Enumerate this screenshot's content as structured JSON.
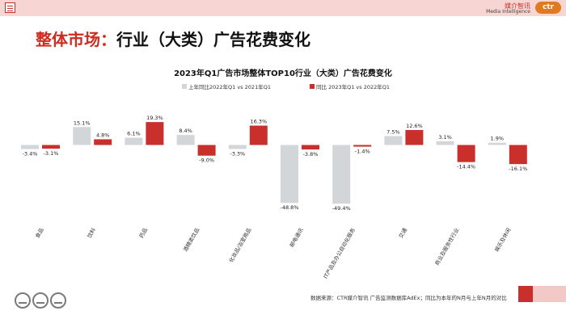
{
  "page_title": {
    "accent": "整体市场：",
    "rest": "行业（大类）广告花费变化"
  },
  "brand": {
    "cn": "媒介智讯",
    "en": "Media Intelligence",
    "logo": "ctr"
  },
  "colors": {
    "series1": "#d3d6d8",
    "series2": "#c9302c",
    "accent": "#d12a1f"
  },
  "chart_data": {
    "type": "bar",
    "title": "2023年Q1广告市场整体TOP10行业（大类）广告花费变化",
    "legend_position": "top",
    "categories": [
      "食品",
      "饮料",
      "药品",
      "酒精类饮品",
      "化妆品/浴室用品",
      "邮电通讯",
      "IT产品及办公自动化服务",
      "交通",
      "商业及服务性行业",
      "娱乐及休闲"
    ],
    "series": [
      {
        "name": "上年同比2022年Q1 vs 2021年Q1",
        "values": [
          -3.4,
          15.1,
          6.1,
          8.4,
          -3.3,
          -48.8,
          -49.4,
          7.5,
          3.1,
          1.9
        ],
        "labels": [
          "-3.4%",
          "15.1%",
          "6.1%",
          "8.4%",
          "-3.3%",
          "-48.8%",
          "-49.4%",
          "7.5%",
          "3.1%",
          "1.9%"
        ]
      },
      {
        "name": "同比 2023年Q1 vs 2022年Q1",
        "values": [
          -3.1,
          4.8,
          19.3,
          -9.0,
          16.3,
          -3.8,
          -1.4,
          12.6,
          -14.4,
          -16.1
        ],
        "labels": [
          "-3.1%",
          "4.8%",
          "19.3%",
          "-9.0%",
          "16.3%",
          "-3.8%",
          "-1.4%",
          "12.6%",
          "-14.4%",
          "-16.1%"
        ]
      }
    ],
    "ylim": [
      -50,
      20
    ],
    "grid": false
  },
  "footer": {
    "note": "数据来源：CTR媒介智讯 广告监测数据库AdEx；同比为本年的N月与上年N月的对比"
  }
}
